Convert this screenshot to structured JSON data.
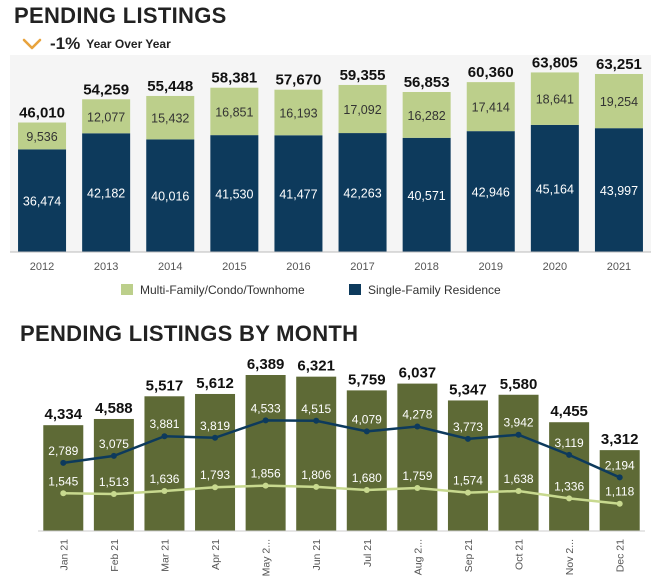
{
  "header": {
    "title": "PENDING LISTINGS",
    "yoy_value": "-1%",
    "yoy_label": "Year Over Year",
    "yoy_direction": "down",
    "yoy_color": "#e8a33d"
  },
  "section2": {
    "title": "PENDING LISTINGS BY MONTH"
  },
  "chart_data": [
    {
      "type": "bar",
      "stacked": true,
      "title": "PENDING LISTINGS",
      "categories": [
        "2012",
        "2013",
        "2014",
        "2015",
        "2016",
        "2017",
        "2018",
        "2019",
        "2020",
        "2021"
      ],
      "totals": [
        46010,
        54259,
        55448,
        58381,
        57670,
        59355,
        56853,
        60360,
        63805,
        63251
      ],
      "total_labels": [
        "46,010",
        "54,259",
        "55,448",
        "58,381",
        "57,670",
        "59,355",
        "56,853",
        "60,360",
        "63,805",
        "63,251"
      ],
      "series": [
        {
          "name": "Single-Family Residence",
          "color": "#0d3a5c",
          "values": [
            36474,
            42182,
            40016,
            41530,
            41477,
            42263,
            40571,
            42946,
            45164,
            43997
          ],
          "labels": [
            "36,474",
            "42,182",
            "40,016",
            "41,530",
            "41,477",
            "42,263",
            "40,571",
            "42,946",
            "45,164",
            "43,997"
          ]
        },
        {
          "name": "Multi-Family/Condo/Townhome",
          "color": "#bccf8b",
          "values": [
            9536,
            12077,
            15432,
            16851,
            16193,
            17092,
            16282,
            17414,
            18641,
            19254
          ],
          "labels": [
            "9,536",
            "12,077",
            "15,432",
            "16,851",
            "16,193",
            "17,092",
            "16,282",
            "17,414",
            "18,641",
            "19,254"
          ]
        }
      ],
      "legend": [
        "Multi-Family/Condo/Townhome",
        "Single-Family Residence"
      ],
      "legend_position": "bottom",
      "grid": false
    },
    {
      "type": "bar",
      "title": "PENDING LISTINGS BY MONTH",
      "categories": [
        "Jan 21",
        "Feb 21",
        "Mar 21",
        "Apr 21",
        "May 2...",
        "Jun 21",
        "Jul 21",
        "Aug 2...",
        "Sep 21",
        "Oct 21",
        "Nov 2...",
        "Dec 21"
      ],
      "bar_color": "#5e6a36",
      "totals": [
        4334,
        4588,
        5517,
        5612,
        6389,
        6321,
        5759,
        6037,
        5347,
        5580,
        4455,
        3312
      ],
      "total_labels": [
        "4,334",
        "4,588",
        "5,517",
        "5,612",
        "6,389",
        "6,321",
        "5,759",
        "6,037",
        "5,347",
        "5,580",
        "4,455",
        "3,312"
      ],
      "lines": [
        {
          "color": "#0d3a5c",
          "values": [
            2789,
            3075,
            3881,
            3819,
            4533,
            4515,
            4079,
            4278,
            3773,
            3942,
            3119,
            2194
          ],
          "labels": [
            "2,789",
            "3,075",
            "3,881",
            "3,819",
            "4,533",
            "4,515",
            "4,079",
            "4,278",
            "3,773",
            "3,942",
            "3,119",
            "2,194"
          ]
        },
        {
          "color": "#c8d98f",
          "values": [
            1545,
            1513,
            1636,
            1793,
            1856,
            1806,
            1680,
            1759,
            1574,
            1638,
            1336,
            1118
          ],
          "labels": [
            "1,545",
            "1,513",
            "1,636",
            "1,793",
            "1,856",
            "1,806",
            "1,680",
            "1,759",
            "1,574",
            "1,638",
            "1,336",
            "1,118"
          ]
        }
      ],
      "grid": false
    }
  ]
}
